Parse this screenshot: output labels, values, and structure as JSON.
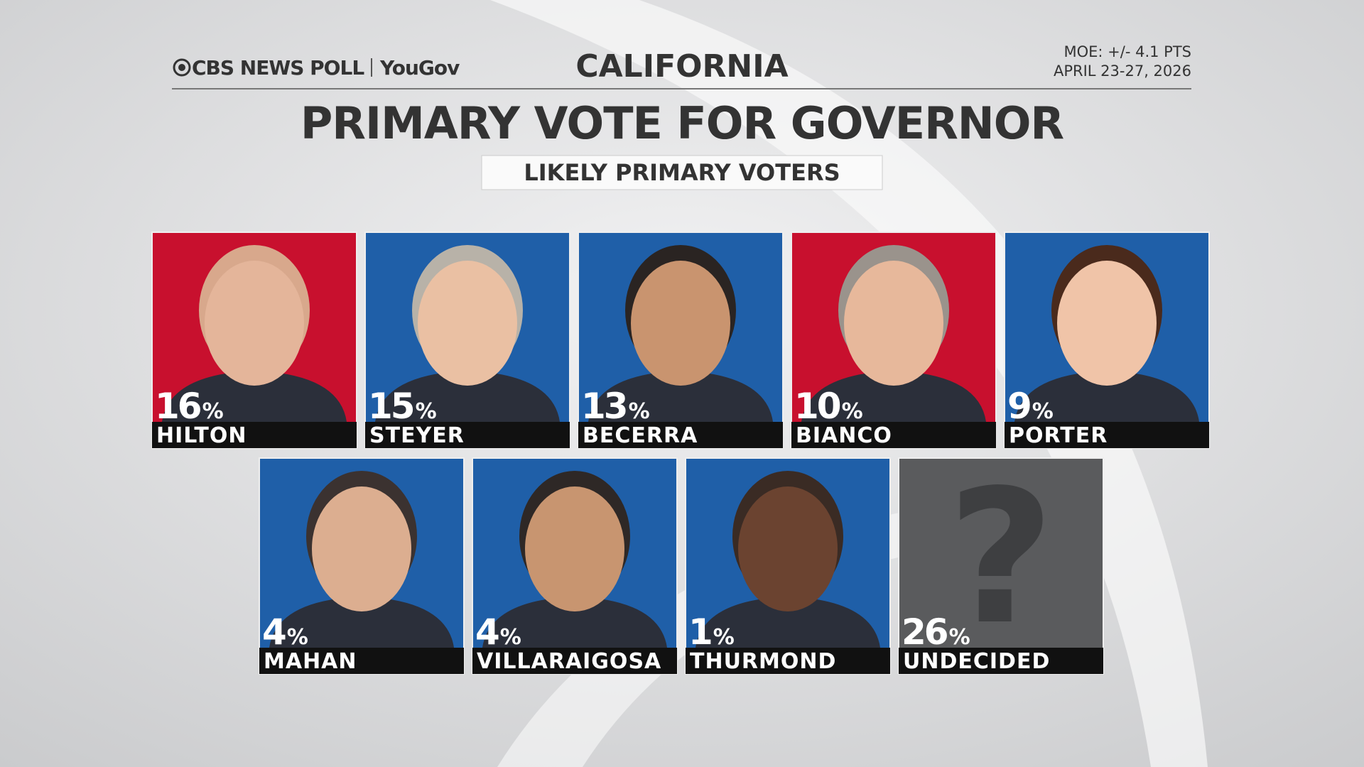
{
  "header": {
    "logo": "CBS NEWS POLL",
    "partner": "YouGov",
    "state": "CALIFORNIA",
    "moe": "MOE: +/- 4.1 PTS",
    "dates": "APRIL 23-27, 2026"
  },
  "title": "PRIMARY VOTE FOR GOVERNOR",
  "subtitle": "LIKELY PRIMARY VOTERS",
  "percent_sign": "%",
  "placeholder": "?",
  "candidates": [
    {
      "name": "HILTON",
      "percent": 16,
      "color": "#c8102e"
    },
    {
      "name": "STEYER",
      "percent": 15,
      "color": "#1f5fa8"
    },
    {
      "name": "BECERRA",
      "percent": 13,
      "color": "#1f5fa8"
    },
    {
      "name": "BIANCO",
      "percent": 10,
      "color": "#c8102e"
    },
    {
      "name": "PORTER",
      "percent": 9,
      "color": "#1f5fa8"
    },
    {
      "name": "MAHAN",
      "percent": 4,
      "color": "#1f5fa8"
    },
    {
      "name": "VILLARAIGOSA",
      "percent": 4,
      "color": "#1f5fa8"
    },
    {
      "name": "THURMOND",
      "percent": 1,
      "color": "#1f5fa8"
    },
    {
      "name": "UNDECIDED",
      "percent": 26,
      "color": "#5a5b5d"
    }
  ]
}
